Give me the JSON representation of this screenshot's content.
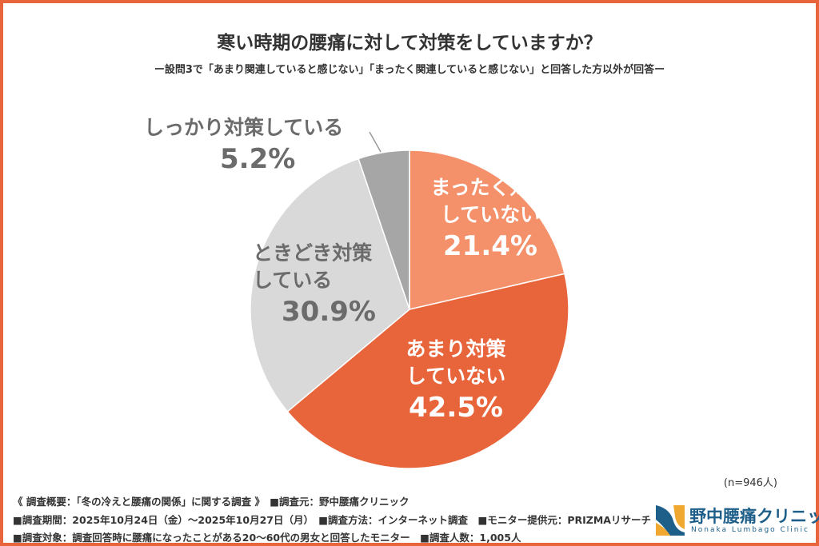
{
  "title": "寒い時期の腰痛に対して対策をしていますか？",
  "subtitle": "ー設問3で「あまり関連していると感じない」「まったく関連していると感じない」と回答した方以外が回答ー",
  "sample": "(n=946人)",
  "chart_data": {
    "type": "pie",
    "start": "top",
    "direction": "clockwise",
    "slices": [
      {
        "label_lines": [
          "まったく対策",
          "していない"
        ],
        "value": 21.4,
        "display": "21.4%",
        "color": "#f4906a",
        "text_color": "#ffffff"
      },
      {
        "label_lines": [
          "あまり対策",
          "していない"
        ],
        "value": 42.5,
        "display": "42.5%",
        "color": "#e8643a",
        "text_color": "#ffffff"
      },
      {
        "label_lines": [
          "ときどき対策",
          "している"
        ],
        "value": 30.9,
        "display": "30.9%",
        "color": "#d9d9d9",
        "text_color": "#6b6b6b"
      },
      {
        "label_lines": [
          "しっかり対策している"
        ],
        "value": 5.2,
        "display": "5.2%",
        "color": "#a6a6a6",
        "text_color": "#6b6b6b"
      }
    ]
  },
  "footer": {
    "line1": "《 調査概要：「冬の冷えと腰痛の関係」に関する調査 》　■調査元：野中腰痛クリニック",
    "line2": "■調査期間：2025年10月24日（金）～2025年10月27日（月）　■調査方法：インターネット調査　■モニター提供元：PRIZMAリサーチ",
    "line3": "■調査対象：調査回答時に腰痛になったことがある20～60代の男女と回答したモニター　■調査人数：1,005人"
  },
  "logo": {
    "name": "野中腰痛クリニック",
    "en": "Nonaka Lumbago Clinic"
  },
  "colors": {
    "frame": "#e8643a"
  }
}
